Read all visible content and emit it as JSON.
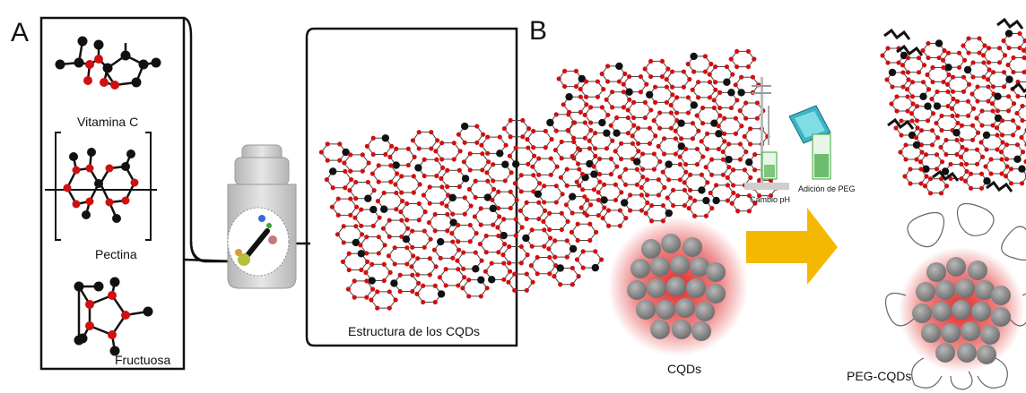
{
  "panels": {
    "a": {
      "letter": "A",
      "molecules": [
        "Vitamina C",
        "Pectina",
        "Fructuosa"
      ],
      "structure_label": "Estructura de los CQDs"
    },
    "b": {
      "letter": "B",
      "step_ph": "Cambio pH",
      "step_peg": "Adición de PEG",
      "cqds_label": "CQDs",
      "peg_cqds_label": "PEG-CQDs"
    }
  },
  "colors": {
    "oxygen": "#d01010",
    "carbon": "#111111",
    "arrow": "#f5b800",
    "glow": "#e02020",
    "dot_gray": "#8a8a8a",
    "jar": "#cfcfcf",
    "beaker_green": "#3aa53a",
    "tablet": "#3cb4c4"
  }
}
